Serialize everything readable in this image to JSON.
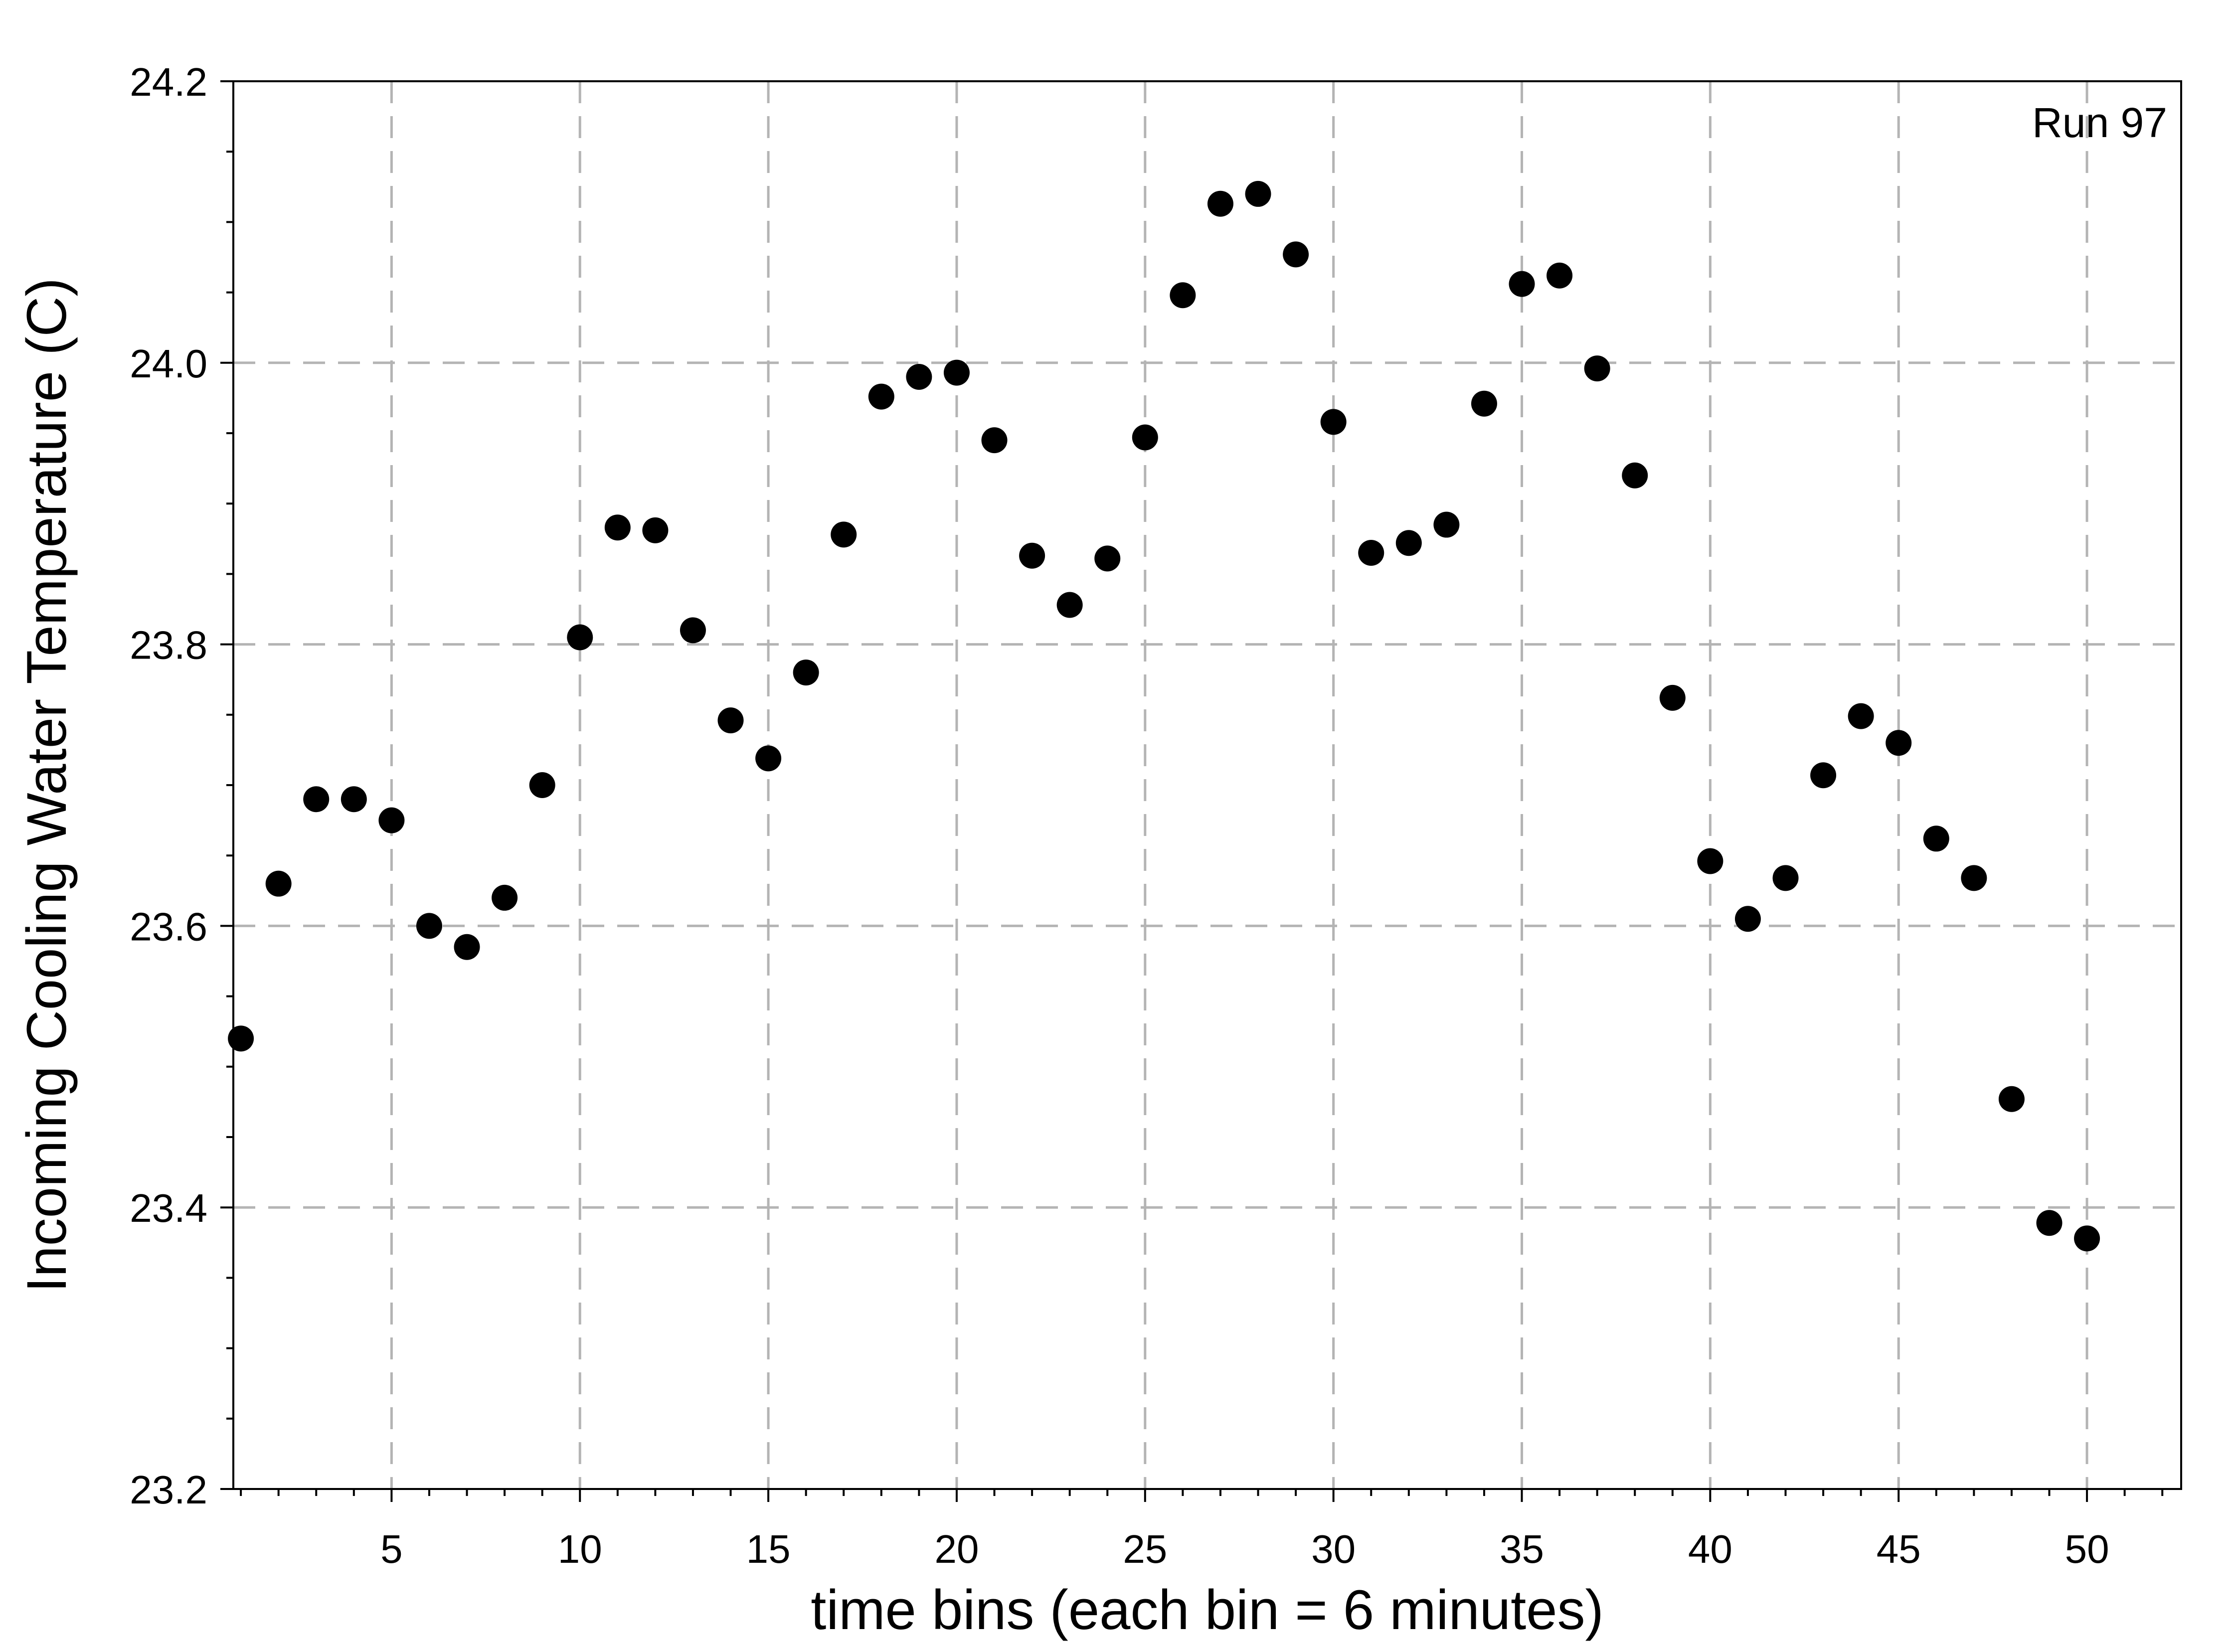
{
  "chart_data": {
    "type": "scatter",
    "title": "",
    "annotation": "Run 97",
    "xlabel": "time bins (each bin = 6 minutes)",
    "ylabel": "Incoming Cooling Water Temperature (C)",
    "xlim": [
      0.8,
      52.5
    ],
    "ylim": [
      23.2,
      24.2
    ],
    "xticks": [
      5,
      10,
      15,
      20,
      25,
      30,
      35,
      40,
      45,
      50
    ],
    "yticks": [
      23.2,
      23.4,
      23.6,
      23.8,
      24.0,
      24.2
    ],
    "ytick_labels": [
      "23.2",
      "23.4",
      "23.6",
      "23.8",
      "24.0",
      "24.2"
    ],
    "grid": true,
    "marker_color": "#000000",
    "grid_color": "#b4b4b4",
    "x": [
      1,
      2,
      3,
      4,
      5,
      6,
      7,
      8,
      9,
      10,
      11,
      12,
      13,
      14,
      15,
      16,
      17,
      18,
      19,
      20,
      21,
      22,
      23,
      24,
      25,
      26,
      27,
      28,
      29,
      30,
      31,
      32,
      33,
      34,
      35,
      36,
      37,
      38,
      39,
      40,
      41,
      42,
      43,
      44,
      45,
      46,
      47,
      48,
      49,
      50
    ],
    "y": [
      23.52,
      23.63,
      23.69,
      23.69,
      23.675,
      23.6,
      23.585,
      23.62,
      23.7,
      23.805,
      23.883,
      23.881,
      23.81,
      23.746,
      23.719,
      23.78,
      23.878,
      23.976,
      23.99,
      23.993,
      23.945,
      23.863,
      23.828,
      23.861,
      23.947,
      24.048,
      24.113,
      24.12,
      24.077,
      23.958,
      23.865,
      23.872,
      23.885,
      23.971,
      24.056,
      24.062,
      23.996,
      23.92,
      23.762,
      23.646,
      23.605,
      23.634,
      23.707,
      23.749,
      23.73,
      23.662,
      23.634,
      23.477,
      23.389,
      23.378
    ]
  }
}
